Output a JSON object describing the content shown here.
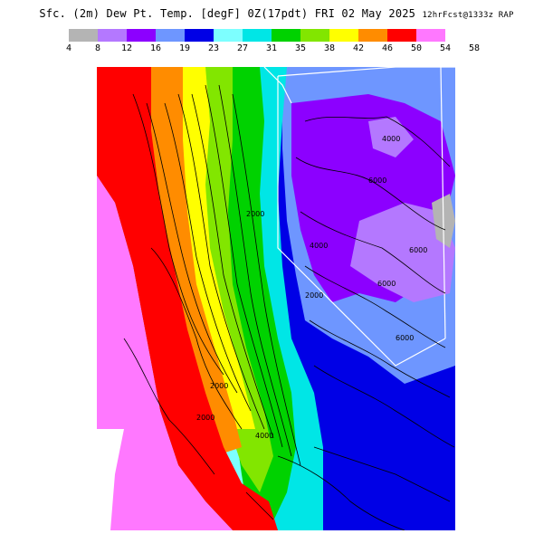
{
  "title": {
    "main": "Sfc. (2m) Dew Pt. Temp. [degF] 0Z(17pdt) FRI 02 May 2025",
    "run": "12hrFcst@1333z RAP"
  },
  "legend": {
    "bins": [
      {
        "color": "#b4b4b4"
      },
      {
        "color": "#b478ff"
      },
      {
        "color": "#8c00ff"
      },
      {
        "color": "#6e96ff"
      },
      {
        "color": "#0000e6"
      },
      {
        "color": "#7dffff"
      },
      {
        "color": "#00e6e6"
      },
      {
        "color": "#00d200"
      },
      {
        "color": "#82e600"
      },
      {
        "color": "#ffff00"
      },
      {
        "color": "#ff8c00"
      },
      {
        "color": "#ff0000"
      },
      {
        "color": "#ff78ff"
      },
      {
        "color": "#ffffff"
      },
      {
        "color": "#ffffff"
      }
    ],
    "ticks": [
      "4",
      "8",
      "12",
      "16",
      "19",
      "23",
      "27",
      "31",
      "35",
      "38",
      "42",
      "46",
      "50",
      "54",
      "58"
    ]
  },
  "map": {
    "contour_labels": [
      "4000",
      "6000",
      "6000",
      "2000",
      "4000",
      "2000",
      "6000",
      "2000",
      "6000",
      "4000",
      "2000"
    ],
    "colors": {
      "ocean": "#ff78ff",
      "red": "#ff0000",
      "orange": "#ff8c00",
      "yellow": "#ffff00",
      "lime": "#82e600",
      "green": "#00d200",
      "teal": "#00e6e6",
      "cyan": "#7dffff",
      "blue": "#0000e6",
      "slate": "#6e96ff",
      "violet": "#8c00ff",
      "lilac": "#b478ff",
      "gray": "#b4b4b4"
    }
  }
}
